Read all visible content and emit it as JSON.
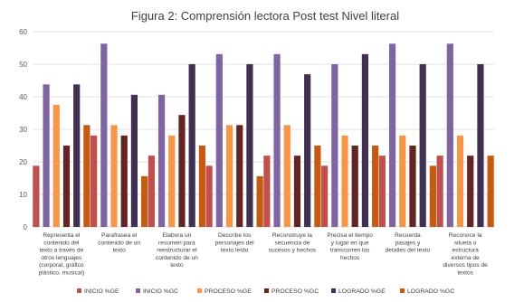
{
  "chart_data": {
    "type": "bar",
    "title": "Figura 2: Comprensión lectora Post test Nivel literal",
    "xlabel": "",
    "ylabel": "",
    "ylim": [
      0,
      60
    ],
    "yticks": [
      0,
      10,
      20,
      30,
      40,
      50,
      60
    ],
    "grid": true,
    "legend_position": "bottom",
    "categories": [
      [
        "Representa el",
        "contenido del",
        "texto a través de",
        "otros lenguajes",
        "(corporal, gráfico",
        "plástico, musical)"
      ],
      [
        "Parafrasea el",
        "contenido de un",
        "texto"
      ],
      [
        "Elabora un",
        "resumen para",
        "reestructurar el",
        "contenido de un",
        "texto"
      ],
      [
        "Describe los",
        "personajes del",
        "texto leído"
      ],
      [
        "Reconstruye la",
        "secuencia de",
        "sucesos y hechos"
      ],
      [
        "Precisa el tiempo",
        "y lugar en que",
        "transcurren los",
        "hechos"
      ],
      [
        "Recuerda",
        "pasajes y",
        "detalles del texto"
      ],
      [
        "Reconoce la",
        "silueta o",
        "estructura",
        "externa de",
        "diversos tipos de",
        "textos"
      ]
    ],
    "series": [
      {
        "name": "INICIO %GE",
        "color": "#c0504d",
        "values": [
          18.8,
          28.1,
          21.9,
          18.8,
          21.9,
          18.8,
          21.9,
          21.9
        ]
      },
      {
        "name": "INICIO %GC",
        "color": "#8064a2",
        "values": [
          43.8,
          56.3,
          40.6,
          53.1,
          53.1,
          50.0,
          56.3,
          56.3
        ]
      },
      {
        "name": "PROCESO %GE",
        "color": "#f79646",
        "values": [
          37.5,
          31.3,
          28.1,
          31.3,
          31.3,
          28.1,
          28.1,
          28.1
        ]
      },
      {
        "name": "PROCESO %GC",
        "color": "#632523",
        "values": [
          25.0,
          28.1,
          34.4,
          31.3,
          21.9,
          25.0,
          25.0,
          21.9
        ]
      },
      {
        "name": "LOGRADO %GE",
        "color": "#403152",
        "values": [
          43.8,
          40.6,
          50.0,
          50.0,
          46.9,
          53.1,
          50.0,
          50.0
        ]
      },
      {
        "name": "LOGRADO %GC",
        "color": "#c55a11",
        "values": [
          31.3,
          15.6,
          25.0,
          15.6,
          25.0,
          25.0,
          18.8,
          21.9
        ]
      }
    ]
  }
}
